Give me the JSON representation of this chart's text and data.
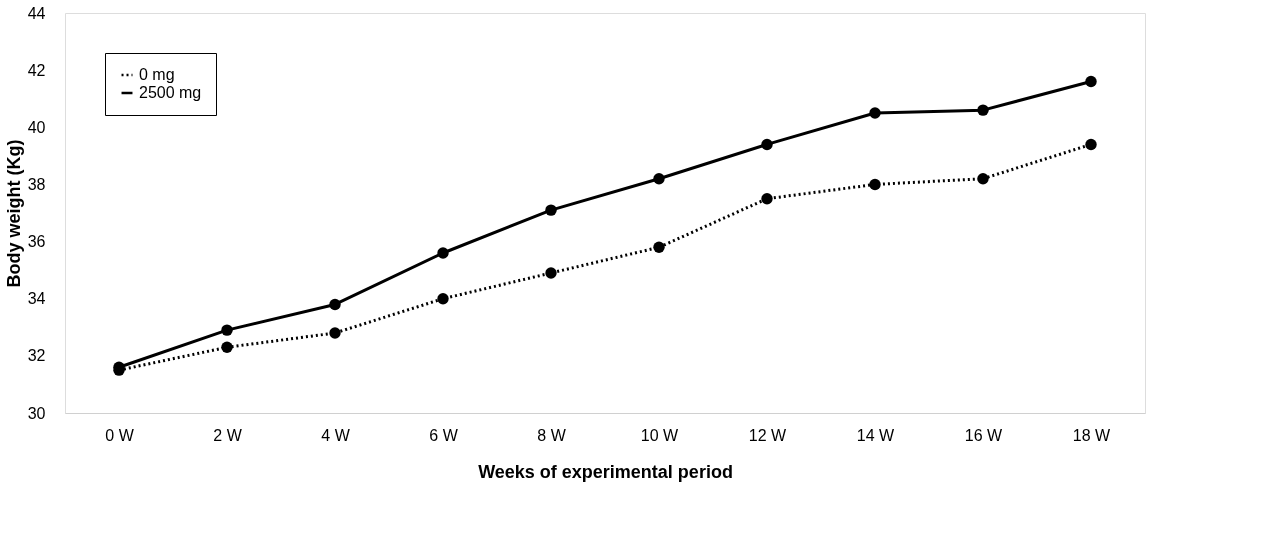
{
  "chart_data": {
    "type": "line",
    "xlabel": "Weeks of experimental  period",
    "ylabel": "Body weight (Kg)",
    "categories": [
      "0 W",
      "2 W",
      "4 W",
      "6 W",
      "8 W",
      "10 W",
      "12 W",
      "14  W",
      "16 W",
      "18 W"
    ],
    "series": [
      {
        "name": "0 mg",
        "color": "#000000",
        "line_style": "dotted",
        "values": [
          31.5,
          32.3,
          32.8,
          34.0,
          34.9,
          35.8,
          37.5,
          38.0,
          38.2,
          39.4
        ]
      },
      {
        "name": "2500 mg",
        "color": "#000000",
        "line_style": "solid",
        "values": [
          31.6,
          32.9,
          33.8,
          35.6,
          37.1,
          38.2,
          39.4,
          40.5,
          40.6,
          41.6
        ]
      }
    ],
    "ylim": [
      30,
      44
    ],
    "yticks": [
      30,
      32,
      34,
      36,
      38,
      40,
      42,
      44
    ],
    "grid": false,
    "legend": "top left",
    "marker": "circle"
  }
}
